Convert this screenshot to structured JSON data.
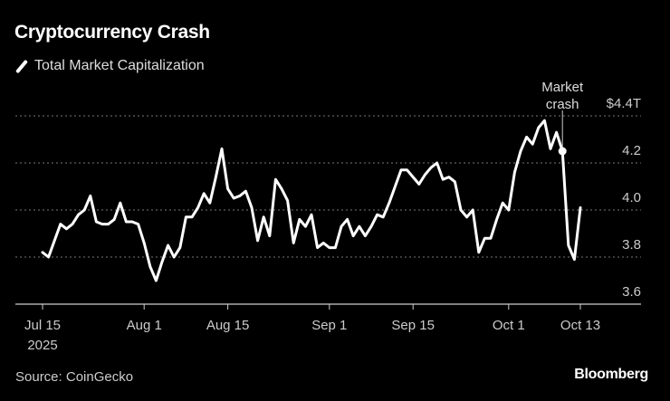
{
  "chart_data": {
    "type": "line",
    "title": "Cryptocurrency Crash",
    "legend": [
      "Total Market Capitalization"
    ],
    "legend_placement": "top-left",
    "source": "Source: CoinGecko",
    "brand": "Bloomberg",
    "y_unit_label": "$4.4T",
    "ylim": [
      3.6,
      4.4
    ],
    "yticks": [
      {
        "value": 4.4,
        "label": "$4.4T"
      },
      {
        "value": 4.2,
        "label": "4.2"
      },
      {
        "value": 4.0,
        "label": "4.0"
      },
      {
        "value": 3.8,
        "label": "3.8"
      },
      {
        "value": 3.6,
        "label": "3.6"
      }
    ],
    "grid": true,
    "xlim": [
      "2025-07-15",
      "2025-10-13"
    ],
    "xticks": [
      {
        "date": "2025-07-15",
        "label": "Jul 15",
        "sublabel": "2025"
      },
      {
        "date": "2025-08-01",
        "label": "Aug 1"
      },
      {
        "date": "2025-08-15",
        "label": "Aug 15"
      },
      {
        "date": "2025-09-01",
        "label": "Sep 1"
      },
      {
        "date": "2025-09-15",
        "label": "Sep 15"
      },
      {
        "date": "2025-10-01",
        "label": "Oct 1"
      },
      {
        "date": "2025-10-13",
        "label": "Oct 13"
      }
    ],
    "annotation": {
      "date": "2025-10-10",
      "value": 4.25,
      "lines": [
        "Market",
        "crash"
      ]
    },
    "series": [
      {
        "name": "Total Market Capitalization",
        "color": "#ffffff",
        "start_date": "2025-07-15",
        "frequency": "daily",
        "values": [
          3.82,
          3.8,
          3.87,
          3.94,
          3.92,
          3.94,
          3.98,
          4.0,
          4.06,
          3.95,
          3.94,
          3.94,
          3.96,
          4.03,
          3.95,
          3.95,
          3.94,
          3.86,
          3.76,
          3.7,
          3.78,
          3.85,
          3.8,
          3.84,
          3.97,
          3.97,
          4.01,
          4.07,
          4.03,
          4.14,
          4.26,
          4.09,
          4.05,
          4.06,
          4.08,
          4.01,
          3.87,
          3.97,
          3.89,
          4.13,
          4.09,
          4.04,
          3.86,
          3.96,
          3.93,
          3.98,
          3.84,
          3.86,
          3.84,
          3.84,
          3.93,
          3.96,
          3.89,
          3.93,
          3.89,
          3.93,
          3.98,
          3.97,
          4.03,
          4.1,
          4.17,
          4.17,
          4.14,
          4.11,
          4.15,
          4.18,
          4.2,
          4.13,
          4.14,
          4.12,
          4.0,
          3.97,
          4.0,
          3.82,
          3.88,
          3.88,
          3.96,
          4.03,
          4.0,
          4.16,
          4.25,
          4.31,
          4.28,
          4.35,
          4.38,
          4.26,
          4.33,
          4.25,
          3.85,
          3.79,
          4.01
        ]
      }
    ]
  }
}
